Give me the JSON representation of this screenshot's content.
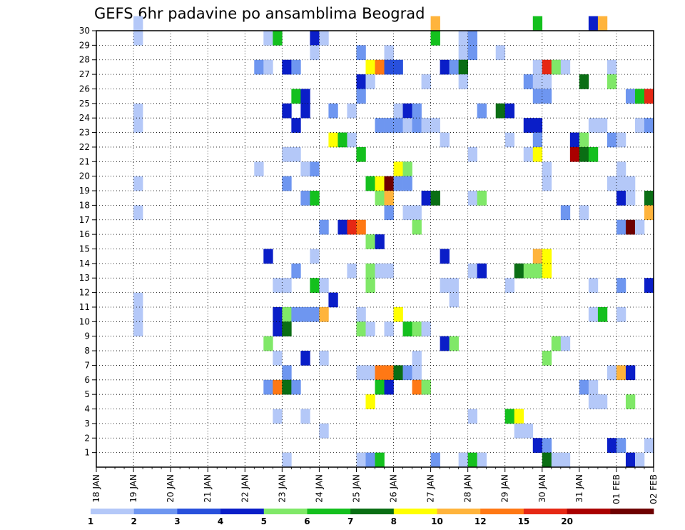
{
  "chart_data": {
    "type": "heatmap",
    "title": "GEFS 6hr padavine po ansamblima Beograd",
    "xlabel": "",
    "ylabel": "",
    "x_ticks": [
      "18 JAN",
      "19 JAN",
      "20 JAN",
      "21 JAN",
      "22 JAN",
      "23 JAN",
      "24 JAN",
      "25 JAN",
      "26 JAN",
      "27 JAN",
      "28 JAN",
      "29 JAN",
      "30 JAN",
      "31 JAN",
      "01 FEB",
      "02 FEB"
    ],
    "y_ticks": [
      "1",
      "2",
      "3",
      "4",
      "5",
      "6",
      "7",
      "8",
      "9",
      "10",
      "11",
      "12",
      "13",
      "14",
      "15",
      "16",
      "17",
      "18",
      "19",
      "20",
      "21",
      "22",
      "23",
      "24",
      "25",
      "26",
      "27",
      "28",
      "29",
      "30"
    ],
    "y_range": [
      0,
      30
    ],
    "steps_per_day": 4,
    "total_steps": 60,
    "grid": "dotted",
    "legend": {
      "position": "bottom",
      "labels": [
        "1",
        "2",
        "3",
        "4",
        "5",
        "6",
        "7",
        "8",
        "10",
        "12",
        "15",
        "20"
      ],
      "colors": [
        "#b4c8f8",
        "#6e96f0",
        "#2850dc",
        "#0a1ec8",
        "#80e868",
        "#14c01e",
        "#0a6e14",
        "#ffff00",
        "#ffb43c",
        "#ff7814",
        "#e62814",
        "#aa0000",
        "#6e0000"
      ]
    },
    "cells": [
      [
        30,
        4,
        0
      ],
      [
        30,
        36,
        8
      ],
      [
        30,
        47,
        5
      ],
      [
        30,
        53,
        3
      ],
      [
        30,
        54,
        8
      ],
      [
        29,
        4,
        0
      ],
      [
        29,
        18,
        0
      ],
      [
        29,
        19,
        5
      ],
      [
        29,
        23,
        3
      ],
      [
        29,
        24,
        0
      ],
      [
        29,
        36,
        5
      ],
      [
        29,
        39,
        0
      ],
      [
        29,
        40,
        1
      ],
      [
        28,
        23,
        0
      ],
      [
        28,
        28,
        1
      ],
      [
        28,
        31,
        0
      ],
      [
        28,
        39,
        0
      ],
      [
        28,
        40,
        1
      ],
      [
        28,
        43,
        0
      ],
      [
        27,
        17,
        1
      ],
      [
        27,
        18,
        0
      ],
      [
        27,
        20,
        3
      ],
      [
        27,
        21,
        1
      ],
      [
        27,
        29,
        7
      ],
      [
        27,
        30,
        9
      ],
      [
        27,
        31,
        2
      ],
      [
        27,
        32,
        2
      ],
      [
        27,
        37,
        3
      ],
      [
        27,
        38,
        1
      ],
      [
        27,
        39,
        6
      ],
      [
        27,
        47,
        0
      ],
      [
        27,
        48,
        10
      ],
      [
        27,
        49,
        4
      ],
      [
        27,
        50,
        0
      ],
      [
        27,
        55,
        0
      ],
      [
        26,
        28,
        3
      ],
      [
        26,
        29,
        0
      ],
      [
        26,
        35,
        0
      ],
      [
        26,
        39,
        0
      ],
      [
        26,
        46,
        1
      ],
      [
        26,
        47,
        0
      ],
      [
        26,
        48,
        0
      ],
      [
        26,
        52,
        6
      ],
      [
        26,
        55,
        4
      ],
      [
        25,
        21,
        5
      ],
      [
        25,
        22,
        3
      ],
      [
        25,
        28,
        1
      ],
      [
        25,
        47,
        1
      ],
      [
        25,
        48,
        1
      ],
      [
        25,
        57,
        1
      ],
      [
        25,
        58,
        5
      ],
      [
        25,
        59,
        10
      ],
      [
        24,
        4,
        0
      ],
      [
        24,
        20,
        3
      ],
      [
        24,
        22,
        3
      ],
      [
        24,
        25,
        1
      ],
      [
        24,
        27,
        0
      ],
      [
        24,
        32,
        0
      ],
      [
        24,
        33,
        3
      ],
      [
        24,
        34,
        1
      ],
      [
        24,
        41,
        1
      ],
      [
        24,
        43,
        6
      ],
      [
        24,
        44,
        3
      ],
      [
        23,
        4,
        0
      ],
      [
        23,
        21,
        3
      ],
      [
        23,
        30,
        1
      ],
      [
        23,
        31,
        1
      ],
      [
        23,
        32,
        1
      ],
      [
        23,
        33,
        0
      ],
      [
        23,
        34,
        1
      ],
      [
        23,
        35,
        0
      ],
      [
        23,
        36,
        0
      ],
      [
        23,
        46,
        3
      ],
      [
        23,
        47,
        3
      ],
      [
        23,
        53,
        0
      ],
      [
        23,
        54,
        0
      ],
      [
        23,
        58,
        0
      ],
      [
        23,
        59,
        1
      ],
      [
        22,
        25,
        7
      ],
      [
        22,
        26,
        5
      ],
      [
        22,
        27,
        0
      ],
      [
        22,
        37,
        0
      ],
      [
        22,
        44,
        0
      ],
      [
        22,
        47,
        1
      ],
      [
        22,
        51,
        3
      ],
      [
        22,
        52,
        4
      ],
      [
        22,
        55,
        1
      ],
      [
        22,
        56,
        0
      ],
      [
        21,
        20,
        0
      ],
      [
        21,
        21,
        0
      ],
      [
        21,
        28,
        5
      ],
      [
        21,
        40,
        0
      ],
      [
        21,
        46,
        0
      ],
      [
        21,
        47,
        7
      ],
      [
        21,
        51,
        11
      ],
      [
        21,
        52,
        6
      ],
      [
        21,
        53,
        5
      ],
      [
        20,
        17,
        0
      ],
      [
        20,
        22,
        0
      ],
      [
        20,
        23,
        1
      ],
      [
        20,
        32,
        7
      ],
      [
        20,
        33,
        4
      ],
      [
        20,
        48,
        0
      ],
      [
        20,
        56,
        0
      ],
      [
        19,
        4,
        0
      ],
      [
        19,
        20,
        1
      ],
      [
        19,
        29,
        5
      ],
      [
        19,
        30,
        7
      ],
      [
        19,
        31,
        12
      ],
      [
        19,
        32,
        1
      ],
      [
        19,
        33,
        1
      ],
      [
        19,
        48,
        0
      ],
      [
        19,
        55,
        0
      ],
      [
        19,
        56,
        0
      ],
      [
        19,
        57,
        0
      ],
      [
        18,
        22,
        1
      ],
      [
        18,
        23,
        5
      ],
      [
        18,
        30,
        4
      ],
      [
        18,
        31,
        8
      ],
      [
        18,
        35,
        3
      ],
      [
        18,
        36,
        6
      ],
      [
        18,
        40,
        0
      ],
      [
        18,
        41,
        4
      ],
      [
        18,
        56,
        3
      ],
      [
        18,
        57,
        0
      ],
      [
        18,
        59,
        6
      ],
      [
        17,
        4,
        0
      ],
      [
        17,
        31,
        1
      ],
      [
        17,
        33,
        0
      ],
      [
        17,
        34,
        0
      ],
      [
        17,
        50,
        1
      ],
      [
        17,
        52,
        0
      ],
      [
        17,
        59,
        8
      ],
      [
        16,
        24,
        1
      ],
      [
        16,
        26,
        3
      ],
      [
        16,
        27,
        10
      ],
      [
        16,
        28,
        9
      ],
      [
        16,
        34,
        4
      ],
      [
        16,
        56,
        1
      ],
      [
        16,
        57,
        12
      ],
      [
        16,
        58,
        0
      ],
      [
        15,
        29,
        4
      ],
      [
        15,
        30,
        3
      ],
      [
        14,
        18,
        3
      ],
      [
        14,
        23,
        0
      ],
      [
        14,
        37,
        3
      ],
      [
        14,
        47,
        8
      ],
      [
        14,
        48,
        7
      ],
      [
        13,
        21,
        1
      ],
      [
        13,
        27,
        0
      ],
      [
        13,
        29,
        4
      ],
      [
        13,
        30,
        0
      ],
      [
        13,
        31,
        0
      ],
      [
        13,
        40,
        0
      ],
      [
        13,
        41,
        3
      ],
      [
        13,
        45,
        6
      ],
      [
        13,
        46,
        4
      ],
      [
        13,
        47,
        4
      ],
      [
        13,
        48,
        7
      ],
      [
        12,
        19,
        0
      ],
      [
        12,
        20,
        0
      ],
      [
        12,
        23,
        5
      ],
      [
        12,
        24,
        0
      ],
      [
        12,
        29,
        4
      ],
      [
        12,
        37,
        0
      ],
      [
        12,
        38,
        0
      ],
      [
        12,
        44,
        0
      ],
      [
        12,
        53,
        0
      ],
      [
        12,
        56,
        1
      ],
      [
        12,
        59,
        3
      ],
      [
        11,
        4,
        0
      ],
      [
        11,
        25,
        3
      ],
      [
        11,
        38,
        0
      ],
      [
        10,
        4,
        0
      ],
      [
        10,
        19,
        3
      ],
      [
        10,
        20,
        4
      ],
      [
        10,
        21,
        1
      ],
      [
        10,
        22,
        1
      ],
      [
        10,
        23,
        1
      ],
      [
        10,
        24,
        8
      ],
      [
        10,
        28,
        0
      ],
      [
        10,
        32,
        7
      ],
      [
        10,
        53,
        0
      ],
      [
        10,
        54,
        5
      ],
      [
        10,
        56,
        0
      ],
      [
        9,
        4,
        0
      ],
      [
        9,
        19,
        3
      ],
      [
        9,
        20,
        6
      ],
      [
        9,
        28,
        4
      ],
      [
        9,
        29,
        0
      ],
      [
        9,
        31,
        0
      ],
      [
        9,
        33,
        5
      ],
      [
        9,
        34,
        4
      ],
      [
        9,
        35,
        0
      ],
      [
        8,
        18,
        4
      ],
      [
        8,
        37,
        3
      ],
      [
        8,
        38,
        4
      ],
      [
        8,
        49,
        4
      ],
      [
        8,
        50,
        0
      ],
      [
        7,
        19,
        0
      ],
      [
        7,
        22,
        3
      ],
      [
        7,
        24,
        0
      ],
      [
        7,
        34,
        0
      ],
      [
        7,
        48,
        4
      ],
      [
        6,
        20,
        1
      ],
      [
        6,
        28,
        0
      ],
      [
        6,
        29,
        0
      ],
      [
        6,
        30,
        9
      ],
      [
        6,
        31,
        9
      ],
      [
        6,
        32,
        6
      ],
      [
        6,
        33,
        1
      ],
      [
        6,
        34,
        0
      ],
      [
        6,
        55,
        0
      ],
      [
        6,
        56,
        8
      ],
      [
        6,
        57,
        3
      ],
      [
        5,
        18,
        1
      ],
      [
        5,
        19,
        9
      ],
      [
        5,
        20,
        6
      ],
      [
        5,
        21,
        1
      ],
      [
        5,
        30,
        5
      ],
      [
        5,
        31,
        3
      ],
      [
        5,
        34,
        9
      ],
      [
        5,
        35,
        4
      ],
      [
        5,
        52,
        1
      ],
      [
        5,
        53,
        0
      ],
      [
        4,
        29,
        7
      ],
      [
        4,
        53,
        0
      ],
      [
        4,
        54,
        0
      ],
      [
        4,
        57,
        4
      ],
      [
        3,
        19,
        0
      ],
      [
        3,
        22,
        0
      ],
      [
        3,
        40,
        0
      ],
      [
        3,
        44,
        5
      ],
      [
        3,
        45,
        7
      ],
      [
        2,
        24,
        0
      ],
      [
        2,
        45,
        0
      ],
      [
        2,
        46,
        0
      ],
      [
        1,
        47,
        3
      ],
      [
        1,
        48,
        1
      ],
      [
        1,
        55,
        3
      ],
      [
        1,
        56,
        1
      ],
      [
        1,
        59,
        0
      ],
      [
        0,
        20,
        0
      ],
      [
        0,
        28,
        0
      ],
      [
        0,
        29,
        1
      ],
      [
        0,
        30,
        5
      ],
      [
        0,
        36,
        1
      ],
      [
        0,
        39,
        0
      ],
      [
        0,
        40,
        5
      ],
      [
        0,
        41,
        0
      ],
      [
        0,
        48,
        6
      ],
      [
        0,
        49,
        0
      ],
      [
        0,
        50,
        0
      ],
      [
        0,
        57,
        3
      ],
      [
        0,
        58,
        0
      ]
    ]
  }
}
